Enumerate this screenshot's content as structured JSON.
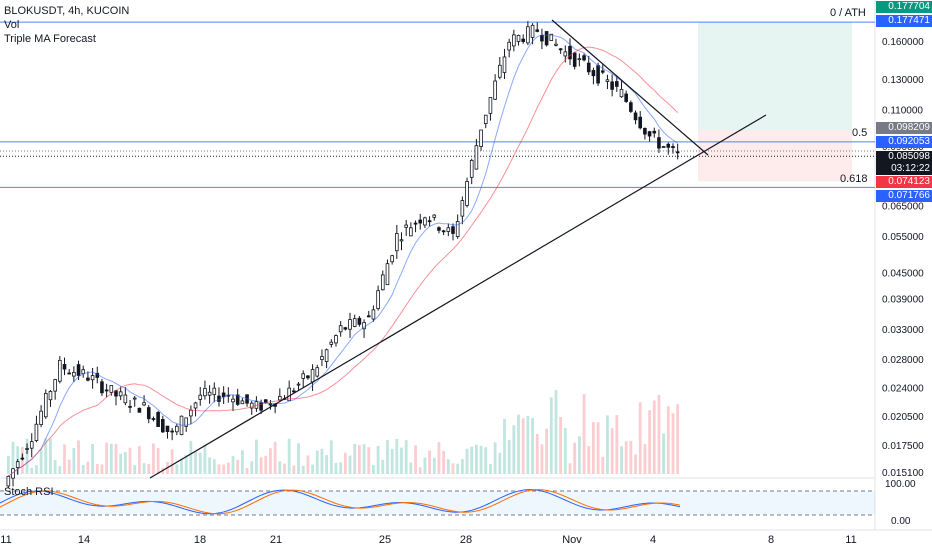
{
  "legend": {
    "symbol_line": "BLOKUSDT, 4h, KUCOIN",
    "vol": "Vol",
    "indicator": "Triple MA Forecast"
  },
  "oscillator": {
    "label": "Stoch RSI",
    "levels": [
      "100.00",
      "0.00"
    ]
  },
  "fib_labels": {
    "top": "0 / ATH",
    "half": "0.5",
    "golden": "0.618"
  },
  "price_tags": [
    {
      "value": "0.177704",
      "color": "#089981"
    },
    {
      "value": "0.177471",
      "color": "#2962ff"
    },
    {
      "value": "0.098209",
      "color": "#787b86"
    },
    {
      "value": "0.092053",
      "color": "#2962ff"
    },
    {
      "value": "0.085098",
      "color": "#131722"
    },
    {
      "value": "03:12:22",
      "color": "#131722"
    },
    {
      "value": "0.074123",
      "color": "#f23645"
    },
    {
      "value": "0.071766",
      "color": "#2962ff"
    }
  ],
  "chart_data": {
    "type": "candlestick",
    "timeframe": "4h",
    "y_scale": "log",
    "y_ticks": [
      "0.160000",
      "0.130000",
      "0.110000",
      "0.090000",
      "0.065000",
      "0.055000",
      "0.045000",
      "0.039000",
      "0.033000",
      "0.028000",
      "0.024000",
      "0.020500",
      "0.017500",
      "0.015100"
    ],
    "x_ticks": [
      "11",
      "14",
      "18",
      "21",
      "25",
      "28",
      "Nov",
      "4",
      "8",
      "11"
    ],
    "close_path": [
      [
        "11",
        0.014
      ],
      [
        "12",
        0.0185
      ],
      [
        "13",
        0.027
      ],
      [
        "14",
        0.0255
      ],
      [
        "15",
        0.023
      ],
      [
        "16",
        0.0215
      ],
      [
        "17",
        0.0185
      ],
      [
        "18",
        0.023
      ],
      [
        "19",
        0.023
      ],
      [
        "20",
        0.0215
      ],
      [
        "21",
        0.023
      ],
      [
        "22",
        0.026
      ],
      [
        "23",
        0.033
      ],
      [
        "24",
        0.035
      ],
      [
        "25",
        0.055
      ],
      [
        "26",
        0.062
      ],
      [
        "27",
        0.055
      ],
      [
        "28",
        0.1
      ],
      [
        "29",
        0.16
      ],
      [
        "30",
        0.17
      ],
      [
        "31",
        0.15
      ],
      [
        "Nov 1",
        0.135
      ],
      [
        "Nov 2",
        0.12
      ],
      [
        "Nov 3",
        0.095
      ],
      [
        "Nov 4",
        0.0851
      ]
    ],
    "horizontal_levels": [
      0.177471,
      0.092053,
      0.071766
    ],
    "fib_levels": [
      {
        "label": "0 / ATH",
        "price": 0.177471
      },
      {
        "label": "0.5",
        "price": 0.092053
      },
      {
        "label": "0.618",
        "price": 0.071766
      }
    ],
    "last_price": 0.085098,
    "countdown": "03:12:22",
    "long_position": {
      "target": 0.177704,
      "entry": 0.098209,
      "stop": 0.074123
    },
    "indicators": [
      "Vol",
      "Triple MA Forecast",
      "Stoch RSI"
    ]
  }
}
